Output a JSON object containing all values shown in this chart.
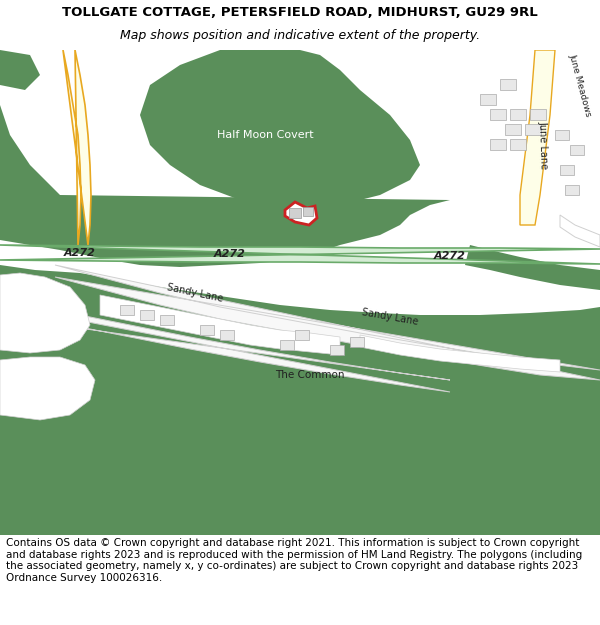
{
  "title_line1": "TOLLGATE COTTAGE, PETERSFIELD ROAD, MIDHURST, GU29 9RL",
  "title_line2": "Map shows position and indicative extent of the property.",
  "footer_text": "Contains OS data © Crown copyright and database right 2021. This information is subject to Crown copyright and database rights 2023 and is reproduced with the permission of HM Land Registry. The polygons (including the associated geometry, namely x, y co-ordinates) are subject to Crown copyright and database rights 2023 Ordnance Survey 100026316.",
  "bg_color": "#ffffff",
  "map_bg": "#ffffff",
  "green_area": "#5a8f5a",
  "green_medium": "#6ea06e",
  "a272_fill": "#d4ecd4",
  "a272_border": "#6aaa6a",
  "road_fill": "#fffff0",
  "road_border": "#e8a020",
  "white_road": "#f8f8f8",
  "grey_road": "#d0d0d0",
  "building_red": "#cc2222",
  "building_grey": "#cccccc",
  "label_dark": "#222222",
  "label_green": "#556655",
  "title_fontsize": 9.5,
  "subtitle_fontsize": 9,
  "footer_fontsize": 7.5
}
